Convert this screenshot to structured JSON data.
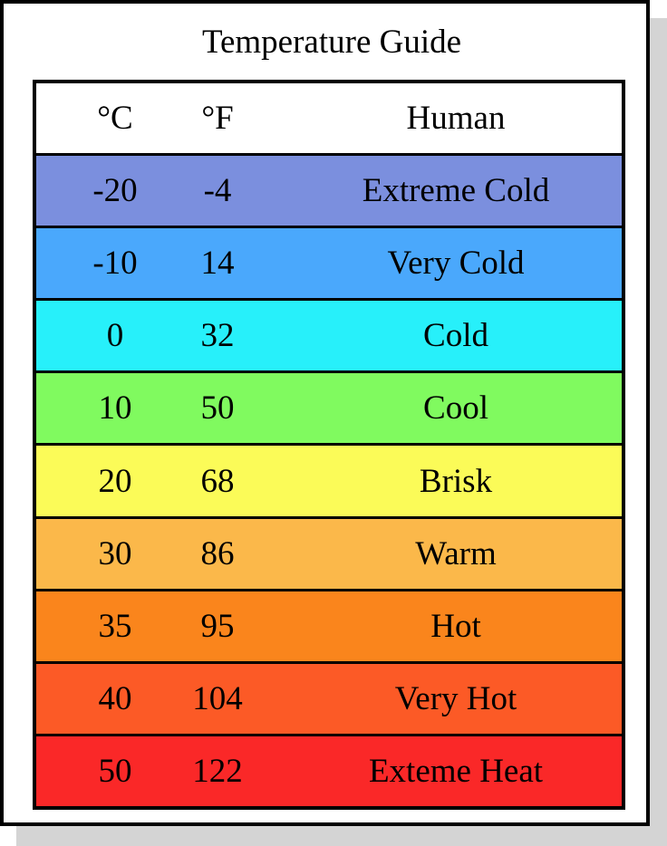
{
  "title": "Temperature Guide",
  "columns": [
    "°C",
    "°F",
    "Human"
  ],
  "rows": [
    {
      "c": "-20",
      "f": "-4",
      "human": "Extreme Cold",
      "color": "#7b8fde"
    },
    {
      "c": "-10",
      "f": "14",
      "human": "Very Cold",
      "color": "#4aa8fc"
    },
    {
      "c": "0",
      "f": "32",
      "human": "Cold",
      "color": "#27f0fa"
    },
    {
      "c": "10",
      "f": "50",
      "human": "Cool",
      "color": "#80fa5f"
    },
    {
      "c": "20",
      "f": "68",
      "human": "Brisk",
      "color": "#fbfb58"
    },
    {
      "c": "30",
      "f": "86",
      "human": "Warm",
      "color": "#fbb84a"
    },
    {
      "c": "35",
      "f": "95",
      "human": "Hot",
      "color": "#fa851c"
    },
    {
      "c": "40",
      "f": "104",
      "human": "Very Hot",
      "color": "#fc5a26"
    },
    {
      "c": "50",
      "f": "122",
      "human": "Exteme Heat",
      "color": "#fa2828"
    }
  ]
}
